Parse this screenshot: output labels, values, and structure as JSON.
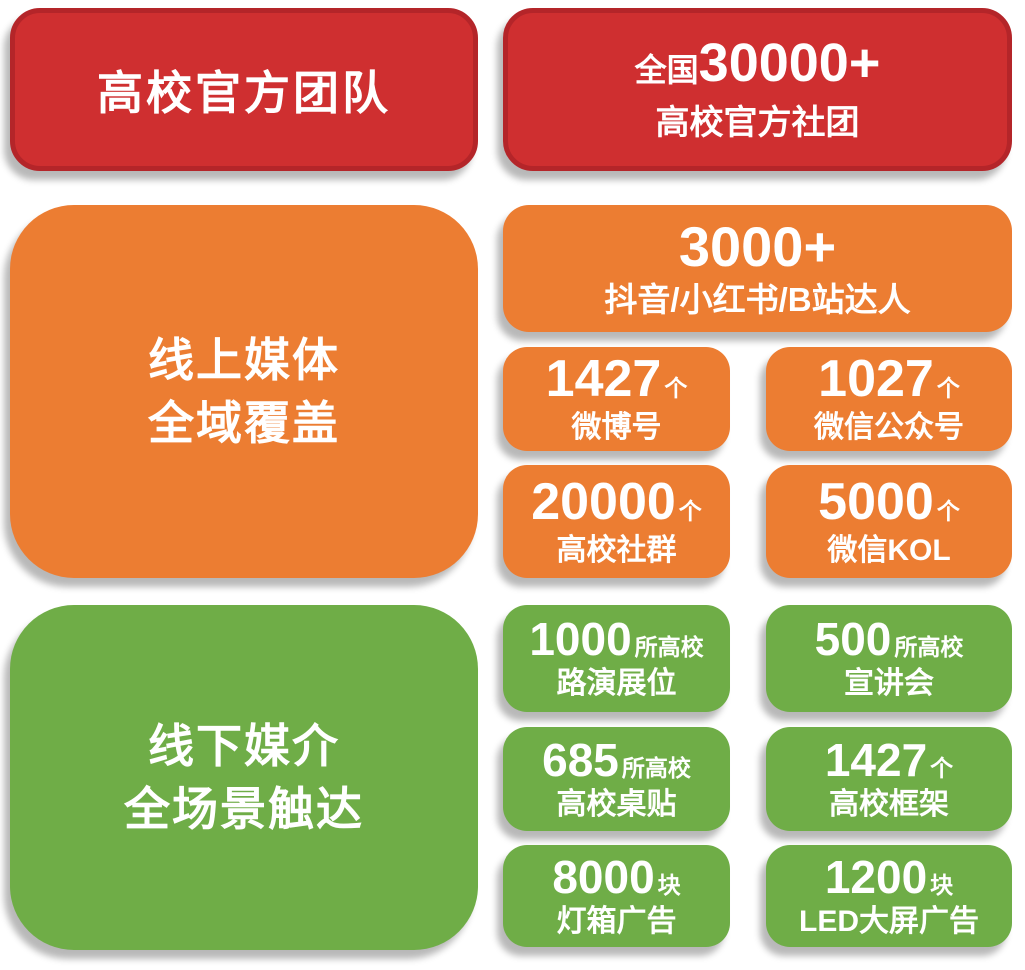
{
  "colors": {
    "red_fill": "#CF2F30",
    "red_border": "#B42529",
    "orange_fill": "#EC7D32",
    "green_fill": "#6FAD47",
    "text": "#FFFFFF",
    "background": "#FFFFFF"
  },
  "red_section": {
    "title": "高校官方团队",
    "stat": {
      "prefix": "全国",
      "number": "30000+",
      "label": "高校官方社团"
    }
  },
  "orange_section": {
    "title_line1": "线上媒体",
    "title_line2": "全域覆盖",
    "hero": {
      "number": "3000+",
      "label": "抖音/小红书/B站达人"
    },
    "stats": [
      {
        "number": "1427",
        "unit": "个",
        "label": "微博号"
      },
      {
        "number": "1027",
        "unit": "个",
        "label": "微信公众号"
      },
      {
        "number": "20000",
        "unit": "个",
        "label": "高校社群"
      },
      {
        "number": "5000",
        "unit": "个",
        "label": "微信KOL"
      }
    ]
  },
  "green_section": {
    "title_line1": "线下媒介",
    "title_line2": "全场景触达",
    "stats": [
      {
        "number": "1000",
        "unit": "所高校",
        "label": "路演展位"
      },
      {
        "number": "500",
        "unit": "所高校",
        "label": "宣讲会"
      },
      {
        "number": "685",
        "unit": "所高校",
        "label": "高校桌贴"
      },
      {
        "number": "1427",
        "unit": "个",
        "label": "高校框架"
      },
      {
        "number": "8000",
        "unit": "块",
        "label": "灯箱广告"
      },
      {
        "number": "1200",
        "unit": "块",
        "label": "LED大屏广告"
      }
    ]
  }
}
